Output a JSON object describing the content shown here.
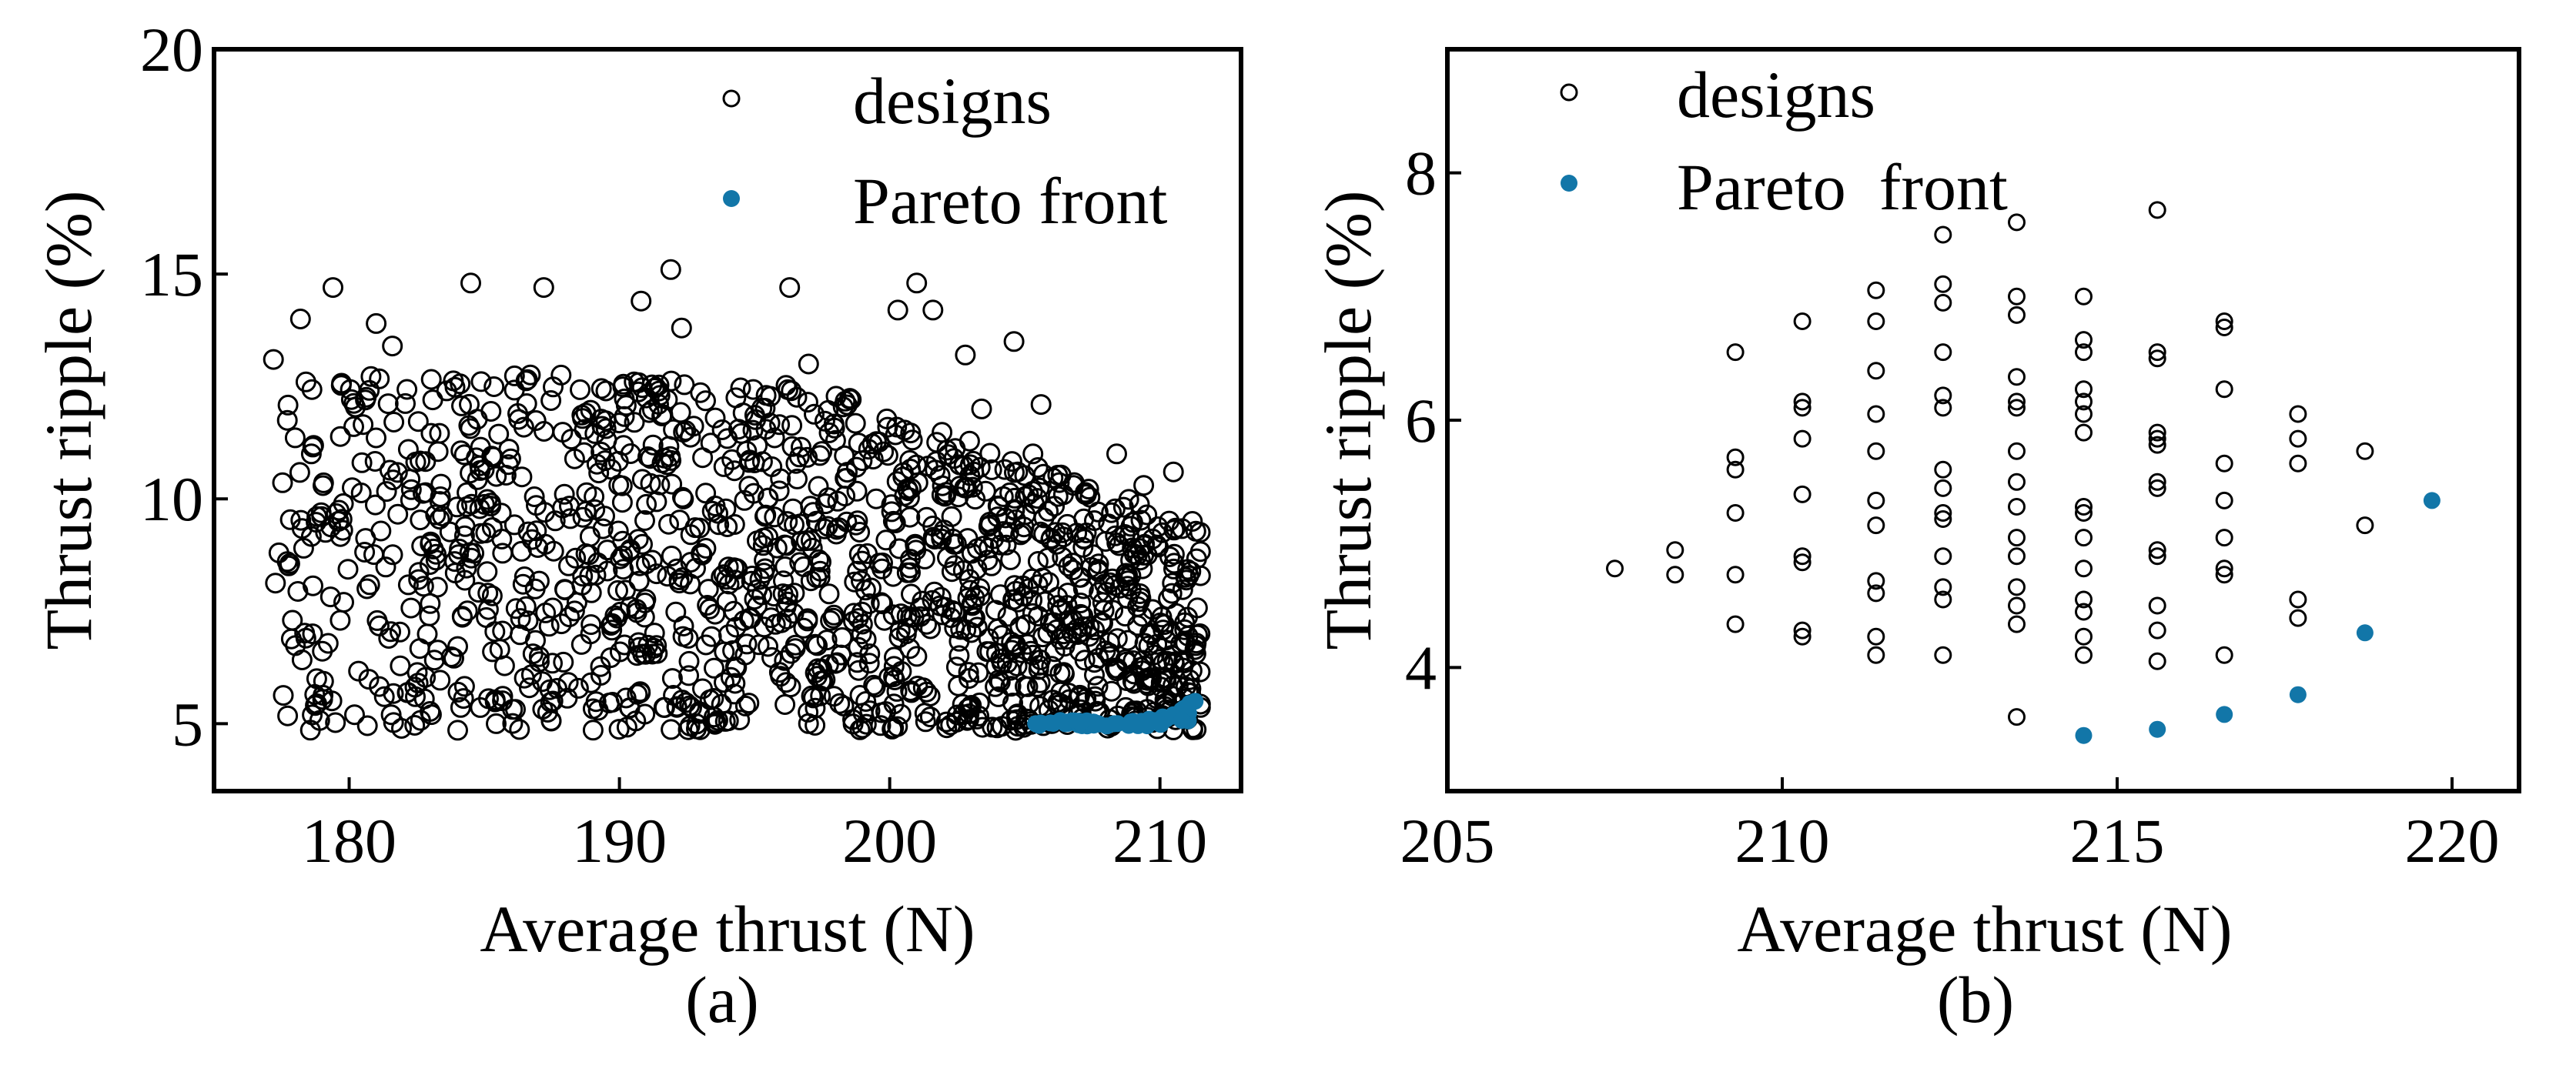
{
  "colors": {
    "designs": "#000000",
    "pareto": "#1276a8",
    "axes": "#000000"
  },
  "chart_data": [
    {
      "type": "scatter",
      "panel_label": "(a)",
      "xlabel": "Average thrust (N)",
      "ylabel": "Thrust ripple (%)",
      "xlim": [
        175,
        213
      ],
      "ylim": [
        3.5,
        20
      ],
      "xticks": [
        180,
        190,
        200,
        210
      ],
      "yticks": [
        5,
        10,
        15,
        20
      ],
      "legend": {
        "placement": "top-right",
        "entries": [
          "designs",
          "Pareto front"
        ]
      },
      "designs_point_count": 1450,
      "series": [
        {
          "name": "designs",
          "marker": "open-circle",
          "points": [
            [
              177.2,
              13.1
            ],
            [
              177.4,
              8.8
            ],
            [
              177.9,
              7.3
            ],
            [
              178.2,
              14.0
            ],
            [
              178.4,
              12.6
            ],
            [
              178.6,
              11.0
            ],
            [
              178.8,
              6.0
            ],
            [
              179.4,
              14.7
            ],
            [
              179.6,
              9.5
            ],
            [
              179.8,
              7.7
            ],
            [
              180.2,
              5.2
            ],
            [
              180.6,
              12.2
            ],
            [
              181.0,
              13.9
            ],
            [
              181.3,
              5.6
            ],
            [
              181.6,
              13.4
            ],
            [
              183.0,
              9.0
            ],
            [
              184.5,
              14.8
            ],
            [
              185.3,
              6.6
            ],
            [
              187.2,
              14.7
            ],
            [
              189.5,
              12.4
            ],
            [
              190.8,
              14.4
            ],
            [
              191.9,
              15.1
            ],
            [
              192.3,
              13.8
            ],
            [
              193.2,
              8.9
            ],
            [
              195.0,
              10.8
            ],
            [
              196.3,
              14.7
            ],
            [
              197.0,
              13.0
            ],
            [
              198.0,
              11.3
            ],
            [
              199.5,
              10.0
            ],
            [
              200.3,
              14.2
            ],
            [
              201.0,
              14.8
            ],
            [
              201.6,
              14.2
            ],
            [
              202.8,
              13.2
            ],
            [
              203.4,
              12.0
            ],
            [
              204.6,
              13.5
            ],
            [
              205.3,
              11.0
            ],
            [
              205.6,
              12.1
            ],
            [
              206.8,
              10.3
            ],
            [
              207.2,
              9.1
            ],
            [
              208.4,
              11.0
            ],
            [
              208.8,
              8.3
            ],
            [
              209.4,
              10.3
            ],
            [
              210.5,
              10.6
            ],
            [
              211.2,
              9.5
            ]
          ]
        },
        {
          "name": "Pareto front",
          "marker": "filled-dot",
          "points": [
            [
              205.4,
              5.0
            ],
            [
              206.5,
              5.0
            ],
            [
              207.5,
              4.98
            ],
            [
              208.3,
              5.0
            ],
            [
              209.0,
              5.05
            ],
            [
              209.6,
              5.1
            ],
            [
              210.1,
              5.15
            ],
            [
              210.5,
              5.2
            ],
            [
              210.8,
              5.3
            ],
            [
              211.1,
              5.45
            ],
            [
              211.3,
              5.5
            ]
          ]
        }
      ]
    },
    {
      "type": "scatter",
      "panel_label": "(b)",
      "xlabel": "Average thrust (N)",
      "ylabel": "Thrust ripple (%)",
      "xlim": [
        205,
        221
      ],
      "ylim": [
        3,
        9
      ],
      "xticks": [
        205,
        210,
        215,
        220
      ],
      "yticks": [
        4,
        6,
        8
      ],
      "legend": {
        "placement": "top-left",
        "entries": [
          "designs",
          "Pareto  front"
        ]
      },
      "series": [
        {
          "name": "designs",
          "marker": "open-circle",
          "points": [
            [
              207.5,
              4.8
            ],
            [
              208.4,
              4.95
            ],
            [
              208.4,
              4.75
            ],
            [
              209.3,
              6.55
            ],
            [
              209.3,
              5.7
            ],
            [
              209.3,
              5.6
            ],
            [
              209.3,
              5.25
            ],
            [
              209.3,
              4.75
            ],
            [
              209.3,
              4.35
            ],
            [
              210.3,
              6.8
            ],
            [
              210.3,
              6.15
            ],
            [
              210.3,
              6.1
            ],
            [
              210.3,
              5.85
            ],
            [
              210.3,
              5.4
            ],
            [
              210.3,
              4.9
            ],
            [
              210.3,
              4.85
            ],
            [
              210.3,
              4.3
            ],
            [
              210.3,
              4.25
            ],
            [
              211.4,
              7.05
            ],
            [
              211.4,
              6.8
            ],
            [
              211.4,
              6.4
            ],
            [
              211.4,
              6.05
            ],
            [
              211.4,
              5.75
            ],
            [
              211.4,
              5.35
            ],
            [
              211.4,
              5.15
            ],
            [
              211.4,
              4.7
            ],
            [
              211.4,
              4.6
            ],
            [
              211.4,
              4.25
            ],
            [
              211.4,
              4.1
            ],
            [
              212.4,
              7.5
            ],
            [
              212.4,
              7.1
            ],
            [
              212.4,
              6.95
            ],
            [
              212.4,
              6.55
            ],
            [
              212.4,
              6.2
            ],
            [
              212.4,
              6.1
            ],
            [
              212.4,
              5.6
            ],
            [
              212.4,
              5.45
            ],
            [
              212.4,
              5.25
            ],
            [
              212.4,
              5.2
            ],
            [
              212.4,
              4.9
            ],
            [
              212.4,
              4.65
            ],
            [
              212.4,
              4.55
            ],
            [
              212.4,
              4.1
            ],
            [
              213.5,
              7.6
            ],
            [
              213.5,
              7.0
            ],
            [
              213.5,
              6.85
            ],
            [
              213.5,
              6.35
            ],
            [
              213.5,
              6.15
            ],
            [
              213.5,
              6.1
            ],
            [
              213.5,
              5.75
            ],
            [
              213.5,
              5.5
            ],
            [
              213.5,
              5.3
            ],
            [
              213.5,
              5.05
            ],
            [
              213.5,
              4.9
            ],
            [
              213.5,
              4.65
            ],
            [
              213.5,
              4.5
            ],
            [
              213.5,
              4.35
            ],
            [
              213.5,
              3.6
            ],
            [
              214.5,
              7.0
            ],
            [
              214.5,
              6.65
            ],
            [
              214.5,
              6.55
            ],
            [
              214.5,
              6.25
            ],
            [
              214.5,
              6.15
            ],
            [
              214.5,
              6.05
            ],
            [
              214.5,
              5.9
            ],
            [
              214.5,
              5.3
            ],
            [
              214.5,
              5.25
            ],
            [
              214.5,
              5.05
            ],
            [
              214.5,
              4.8
            ],
            [
              214.5,
              4.55
            ],
            [
              214.5,
              4.45
            ],
            [
              214.5,
              4.25
            ],
            [
              214.5,
              4.1
            ],
            [
              215.6,
              7.7
            ],
            [
              215.6,
              6.55
            ],
            [
              215.6,
              6.5
            ],
            [
              215.6,
              5.9
            ],
            [
              215.6,
              5.85
            ],
            [
              215.6,
              5.8
            ],
            [
              215.6,
              5.5
            ],
            [
              215.6,
              5.45
            ],
            [
              215.6,
              4.95
            ],
            [
              215.6,
              4.9
            ],
            [
              215.6,
              4.5
            ],
            [
              215.6,
              4.3
            ],
            [
              215.6,
              4.05
            ],
            [
              216.6,
              6.8
            ],
            [
              216.6,
              6.75
            ],
            [
              216.6,
              6.25
            ],
            [
              216.6,
              5.65
            ],
            [
              216.6,
              5.35
            ],
            [
              216.6,
              5.05
            ],
            [
              216.6,
              4.8
            ],
            [
              216.6,
              4.75
            ],
            [
              216.6,
              4.1
            ],
            [
              217.7,
              6.05
            ],
            [
              217.7,
              5.85
            ],
            [
              217.7,
              5.65
            ],
            [
              217.7,
              4.55
            ],
            [
              217.7,
              4.4
            ],
            [
              218.7,
              5.75
            ],
            [
              218.7,
              5.15
            ]
          ]
        },
        {
          "name": "Pareto  front",
          "marker": "filled-dot",
          "points": [
            [
              214.5,
              3.45
            ],
            [
              215.6,
              3.5
            ],
            [
              216.6,
              3.62
            ],
            [
              217.7,
              3.78
            ],
            [
              218.7,
              4.28
            ],
            [
              219.7,
              5.35
            ]
          ]
        }
      ]
    }
  ]
}
